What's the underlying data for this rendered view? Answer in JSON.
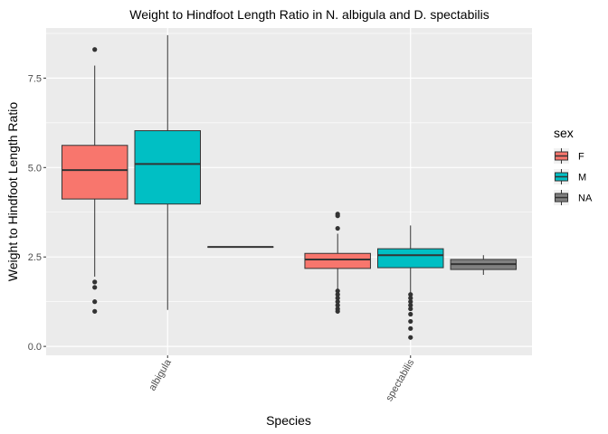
{
  "chart_data": {
    "type": "boxplot",
    "title": "Weight to Hindfoot Length Ratio in N. albigula and D. spectabilis",
    "xlabel": "Species",
    "ylabel": "Weight to Hindfoot Length Ratio",
    "categories": [
      "albigula",
      "spectabilis"
    ],
    "ylim": [
      -0.25,
      8.9
    ],
    "y_ticks": [
      0.0,
      2.5,
      5.0,
      7.5
    ],
    "y_tick_labels": [
      "0.0",
      "2.5",
      "5.0",
      "7.5"
    ],
    "x_tick_rotation": "-60deg",
    "grid": true,
    "legend": {
      "title": "sex",
      "placement": "right",
      "entries": [
        {
          "label": "F",
          "color": "#F8766D"
        },
        {
          "label": "M",
          "color": "#00BFC4"
        },
        {
          "label": "NA",
          "color": "#808080"
        }
      ]
    },
    "series": [
      {
        "name": "F",
        "color": "#F8766D",
        "boxes": [
          {
            "category": "albigula",
            "min": 1.95,
            "q1": 4.12,
            "median": 4.93,
            "q3": 5.62,
            "max": 7.85,
            "outliers": [
              8.3,
              1.8,
              1.65,
              1.25,
              0.98
            ]
          },
          {
            "category": "spectabilis",
            "min": 1.58,
            "q1": 2.18,
            "median": 2.43,
            "q3": 2.6,
            "max": 3.15,
            "outliers": [
              3.7,
              3.65,
              3.3,
              1.55,
              1.45,
              1.35,
              1.25,
              1.15,
              1.05,
              0.98
            ]
          }
        ]
      },
      {
        "name": "M",
        "color": "#00BFC4",
        "boxes": [
          {
            "category": "albigula",
            "min": 1.02,
            "q1": 3.98,
            "median": 5.1,
            "q3": 6.03,
            "max": 8.7,
            "outliers": []
          },
          {
            "category": "spectabilis",
            "min": 1.5,
            "q1": 2.2,
            "median": 2.55,
            "q3": 2.73,
            "max": 3.38,
            "outliers": [
              1.45,
              1.35,
              1.25,
              1.15,
              1.05,
              0.9,
              0.7,
              0.5,
              0.25
            ]
          }
        ]
      },
      {
        "name": "NA",
        "color": "#808080",
        "boxes": [
          {
            "category": "albigula",
            "min": 2.78,
            "q1": 2.78,
            "median": 2.78,
            "q3": 2.78,
            "max": 2.78,
            "outliers": []
          },
          {
            "category": "spectabilis",
            "min": 2.0,
            "q1": 2.15,
            "median": 2.3,
            "q3": 2.43,
            "max": 2.55,
            "outliers": []
          }
        ]
      }
    ]
  }
}
